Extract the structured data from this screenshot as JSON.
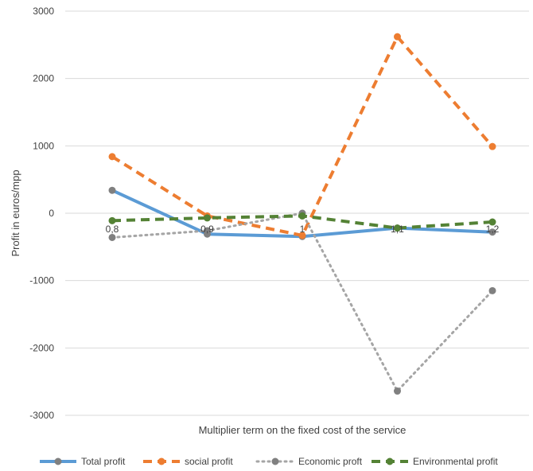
{
  "chart_data": {
    "type": "line",
    "title": "",
    "xlabel": "Multiplier term on the fixed cost of the service",
    "ylabel": "Profit in euros/mpp",
    "x": [
      "0,8",
      "0,9",
      "1",
      "1,1",
      "1,2"
    ],
    "ylim": [
      -3000,
      3000
    ],
    "yticks": [
      3000,
      2000,
      1000,
      0,
      -1000,
      -2000,
      -3000
    ],
    "grid": true,
    "legend_position": "bottom",
    "series": [
      {
        "name": "Total profit",
        "values": [
          340,
          -310,
          -345,
          -220,
          -280
        ],
        "color": "#5B9BD5",
        "style": "solid",
        "marker": "#808080"
      },
      {
        "name": "social profit",
        "values": [
          840,
          -40,
          -330,
          2620,
          990
        ],
        "color": "#ED7D31",
        "style": "dashed",
        "marker": "#ED7D31"
      },
      {
        "name": "Economic proft",
        "values": [
          -360,
          -260,
          0,
          -2640,
          -1150
        ],
        "color": "#A5A5A5",
        "style": "dotted",
        "marker": "#808080"
      },
      {
        "name": "Environmental profit",
        "values": [
          -110,
          -70,
          -40,
          -220,
          -130
        ],
        "color": "#548235",
        "style": "dashed",
        "marker": "#548235"
      }
    ]
  }
}
